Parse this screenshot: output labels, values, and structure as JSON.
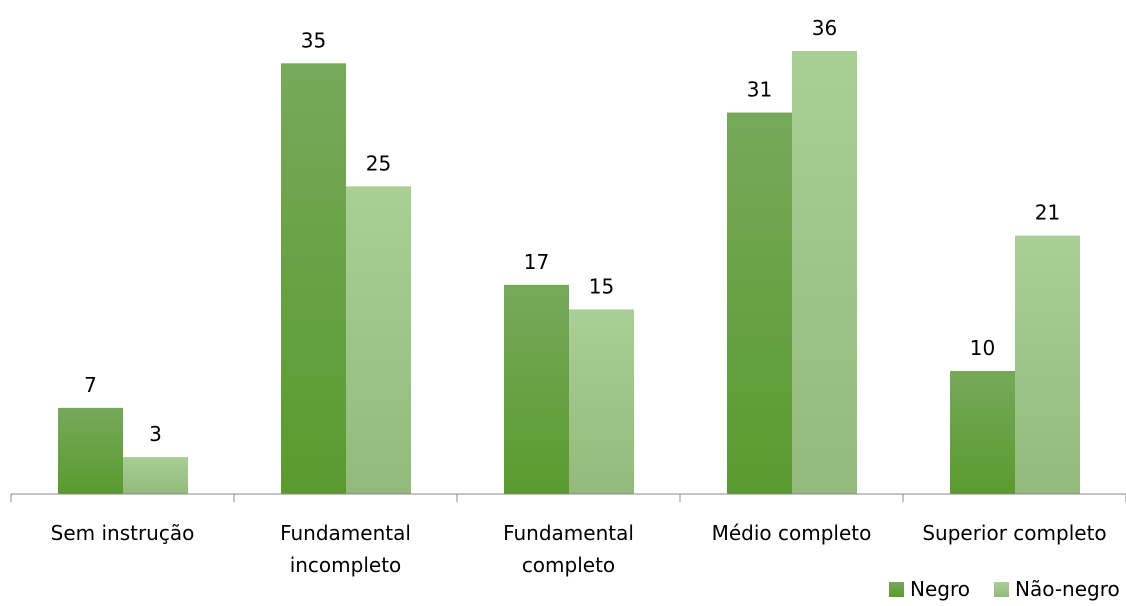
{
  "chart_data": {
    "type": "bar",
    "categories": [
      [
        "Sem instrução"
      ],
      [
        "Fundamental",
        "incompleto"
      ],
      [
        "Fundamental",
        "completo"
      ],
      [
        "Médio completo"
      ],
      [
        "Superior completo"
      ]
    ],
    "series": [
      {
        "name": "Negro",
        "values": [
          7,
          35,
          17,
          31,
          10
        ],
        "color": "#5e9a34"
      },
      {
        "name": "Não-negro",
        "values": [
          3,
          25,
          15,
          36,
          21
        ],
        "color": "#a6ca8f"
      }
    ],
    "ylim": [
      0,
      36
    ],
    "legend": "bottom-right",
    "grid": false,
    "data_labels": true
  }
}
